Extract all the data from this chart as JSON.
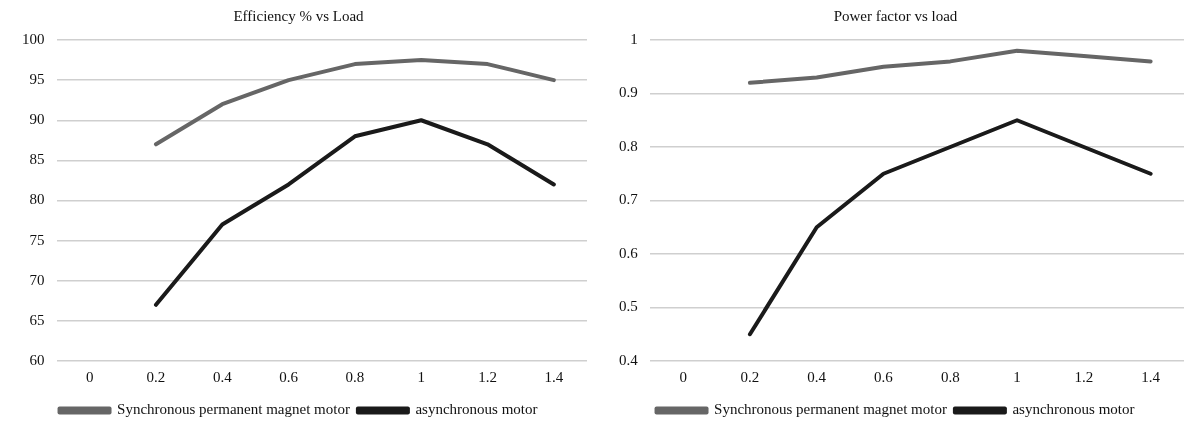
{
  "chart_data": [
    {
      "type": "line",
      "title": "Efficiency % vs Load",
      "categories": [
        "0",
        "0.2",
        "0.4",
        "0.6",
        "0.8",
        "1",
        "1.2",
        "1.4"
      ],
      "series": [
        {
          "name": "Synchronous permanent magnet motor",
          "color": "#666666",
          "values": [
            null,
            87,
            92,
            95,
            97,
            97.5,
            97,
            95
          ]
        },
        {
          "name": "asynchronous motor",
          "color": "#1a1a1a",
          "values": [
            null,
            67,
            77,
            82,
            88,
            90,
            87,
            82
          ]
        }
      ],
      "ylim": [
        60,
        100
      ],
      "yticks": [
        60,
        65,
        70,
        75,
        80,
        85,
        90,
        95,
        100
      ],
      "grid": "y",
      "legend": "bottom",
      "marker": "none"
    },
    {
      "type": "line",
      "title": "Power factor vs load",
      "categories": [
        "0",
        "0.2",
        "0.4",
        "0.6",
        "0.8",
        "1",
        "1.2",
        "1.4"
      ],
      "series": [
        {
          "name": "Synchronous permanent magnet motor",
          "color": "#666666",
          "values": [
            null,
            0.92,
            0.93,
            0.95,
            0.96,
            0.98,
            0.97,
            0.96
          ]
        },
        {
          "name": "asynchronous motor",
          "color": "#1a1a1a",
          "values": [
            null,
            0.45,
            0.65,
            0.75,
            0.8,
            0.85,
            0.8,
            0.75
          ]
        }
      ],
      "ylim": [
        0.4,
        1
      ],
      "yticks": [
        0.4,
        0.5,
        0.6,
        0.7,
        0.8,
        0.9,
        1
      ],
      "grid": "y",
      "legend": "bottom",
      "marker": "none"
    }
  ]
}
